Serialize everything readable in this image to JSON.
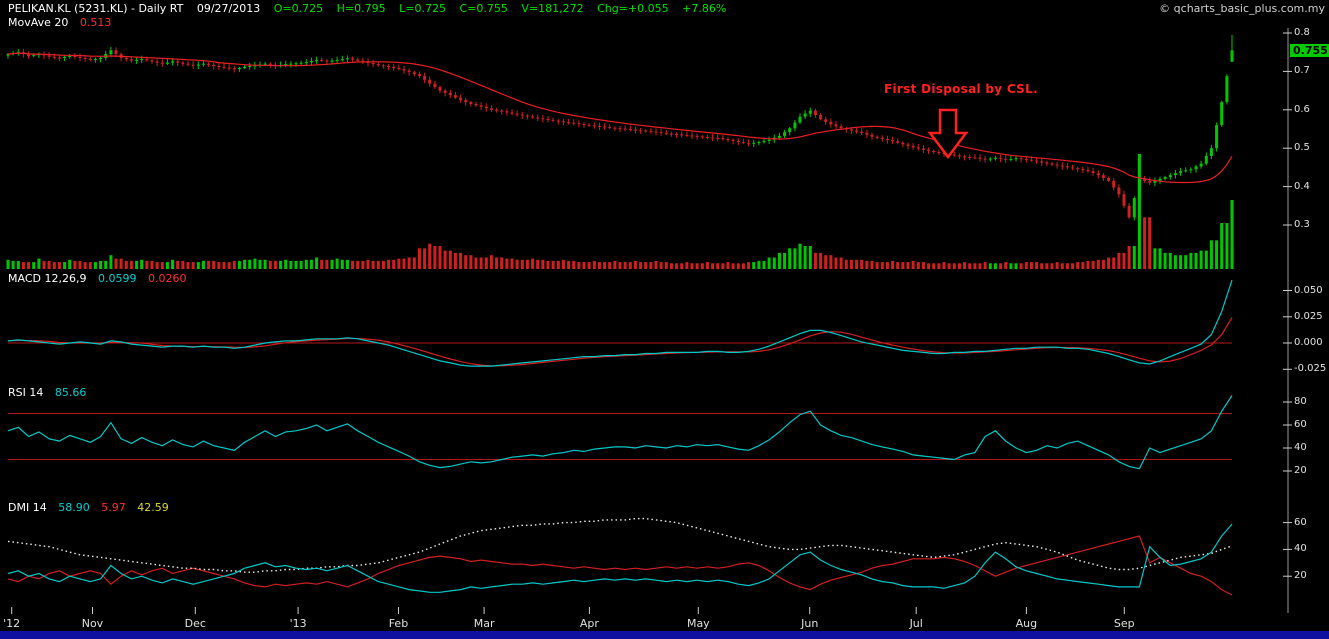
{
  "header": {
    "title": "PELIKAN.KL (5231.KL) - Daily RT",
    "date": "09/27/2013",
    "ohlcv": {
      "open": "O=0.725",
      "high": "H=0.795",
      "low": "L=0.725",
      "close": "C=0.755",
      "volume": "V=181,272"
    },
    "change": "Chg=+0.055",
    "change_pct": "+7.86%"
  },
  "copyright": "© qcharts_basic_plus.com.my",
  "price_badge": "0.755",
  "annotation": {
    "text": "First Disposal by CSL."
  },
  "panels": {
    "main": {
      "indicator_label": "MovAve 20",
      "indicator_value": "0.513"
    },
    "macd": {
      "label": "MACD 12,26,9",
      "value1": "0.0599",
      "value2": "0.0260"
    },
    "rsi": {
      "label": "RSI 14",
      "value1": "85.66"
    },
    "dmi": {
      "label": "DMI 14",
      "value1": "58.90",
      "value2": "5.97",
      "value3": "42.59"
    }
  },
  "colors": {
    "up": "#00c800",
    "down": "#d02020",
    "ma": "#e82020",
    "ref": "#b01818",
    "annotation": "#ff2020",
    "badge_bg": "#00cc00",
    "badge_text": "#000000"
  },
  "x_axis": {
    "labels": [
      {
        "text": "'12",
        "f": 0.003
      },
      {
        "text": "Nov",
        "f": 0.069
      },
      {
        "text": "Dec",
        "f": 0.153
      },
      {
        "text": "'13",
        "f": 0.237
      },
      {
        "text": "Feb",
        "f": 0.319
      },
      {
        "text": "Mar",
        "f": 0.389
      },
      {
        "text": "Apr",
        "f": 0.475
      },
      {
        "text": "May",
        "f": 0.564
      },
      {
        "text": "Jun",
        "f": 0.655
      },
      {
        "text": "Jul",
        "f": 0.742
      },
      {
        "text": "Aug",
        "f": 0.832
      },
      {
        "text": "Sep",
        "f": 0.912
      }
    ]
  },
  "chart_data": [
    {
      "type": "candlestick",
      "title": "PELIKAN.KL (5231.KL) Daily",
      "x_range": [
        "Oct 2012",
        "Sep 27 2013"
      ],
      "ylim": [
        0.27,
        0.82
      ],
      "y_ticks": [
        {
          "label": "0.8",
          "v": 0.8
        },
        {
          "label": "0.7",
          "v": 0.7
        },
        {
          "label": "0.6",
          "v": 0.6
        },
        {
          "label": "0.5",
          "v": 0.5
        },
        {
          "label": "0.4",
          "v": 0.4
        },
        {
          "label": "0.3",
          "v": 0.3
        }
      ],
      "moving_average": {
        "name": "MovAve 20",
        "last": 0.513
      },
      "last_candle": {
        "open": 0.725,
        "high": 0.795,
        "low": 0.725,
        "close": 0.755,
        "volume": 181272
      },
      "closes": [
        0.745,
        0.75,
        0.74,
        0.745,
        0.738,
        0.735,
        0.74,
        0.735,
        0.73,
        0.735,
        0.755,
        0.735,
        0.728,
        0.732,
        0.726,
        0.72,
        0.726,
        0.72,
        0.715,
        0.72,
        0.714,
        0.71,
        0.706,
        0.712,
        0.716,
        0.72,
        0.715,
        0.719,
        0.721,
        0.724,
        0.73,
        0.726,
        0.73,
        0.734,
        0.728,
        0.722,
        0.716,
        0.712,
        0.706,
        0.698,
        0.688,
        0.668,
        0.65,
        0.638,
        0.625,
        0.615,
        0.608,
        0.6,
        0.596,
        0.59,
        0.585,
        0.58,
        0.576,
        0.572,
        0.568,
        0.565,
        0.561,
        0.558,
        0.555,
        0.552,
        0.55,
        0.547,
        0.545,
        0.542,
        0.538,
        0.536,
        0.533,
        0.531,
        0.528,
        0.526,
        0.522,
        0.516,
        0.512,
        0.516,
        0.522,
        0.532,
        0.552,
        0.582,
        0.598,
        0.575,
        0.562,
        0.552,
        0.546,
        0.54,
        0.53,
        0.524,
        0.518,
        0.51,
        0.502,
        0.496,
        0.49,
        0.486,
        0.481,
        0.477,
        0.475,
        0.471,
        0.475,
        0.47,
        0.474,
        0.47,
        0.466,
        0.46,
        0.455,
        0.45,
        0.446,
        0.44,
        0.43,
        0.415,
        0.38,
        0.32,
        0.42,
        0.41,
        0.42,
        0.43,
        0.44,
        0.445,
        0.46,
        0.5,
        0.62,
        0.755
      ],
      "volumes_rel": [
        0.08,
        0.07,
        0.06,
        0.09,
        0.07,
        0.06,
        0.08,
        0.07,
        0.06,
        0.07,
        0.12,
        0.09,
        0.07,
        0.08,
        0.07,
        0.06,
        0.08,
        0.07,
        0.06,
        0.07,
        0.07,
        0.06,
        0.07,
        0.08,
        0.09,
        0.08,
        0.07,
        0.08,
        0.07,
        0.08,
        0.1,
        0.08,
        0.09,
        0.08,
        0.07,
        0.08,
        0.07,
        0.08,
        0.09,
        0.1,
        0.18,
        0.22,
        0.2,
        0.16,
        0.14,
        0.12,
        0.1,
        0.12,
        0.1,
        0.09,
        0.08,
        0.09,
        0.08,
        0.07,
        0.08,
        0.07,
        0.06,
        0.07,
        0.06,
        0.07,
        0.06,
        0.07,
        0.06,
        0.07,
        0.06,
        0.05,
        0.06,
        0.05,
        0.06,
        0.05,
        0.06,
        0.05,
        0.06,
        0.07,
        0.1,
        0.14,
        0.18,
        0.22,
        0.2,
        0.14,
        0.12,
        0.1,
        0.08,
        0.08,
        0.07,
        0.06,
        0.07,
        0.06,
        0.07,
        0.06,
        0.05,
        0.06,
        0.05,
        0.06,
        0.05,
        0.06,
        0.05,
        0.06,
        0.05,
        0.06,
        0.06,
        0.05,
        0.06,
        0.05,
        0.06,
        0.07,
        0.08,
        0.1,
        0.14,
        0.2,
        1.0,
        0.45,
        0.18,
        0.14,
        0.12,
        0.14,
        0.16,
        0.25,
        0.4,
        0.6
      ]
    },
    {
      "type": "line",
      "name": "MACD 12,26,9",
      "ylim": [
        -0.035,
        0.062
      ],
      "y_ticks": [
        {
          "label": "0.050",
          "v": 0.05
        },
        {
          "label": "0.025",
          "v": 0.025
        },
        {
          "label": "0.000",
          "v": 0.0
        },
        {
          "label": "-0.025",
          "v": -0.025
        }
      ],
      "series": [
        {
          "name": "MACD",
          "color": "#00c8c8",
          "last": 0.0599,
          "values": [
            0.002,
            0.003,
            0.002,
            0.001,
            0.0,
            -0.001,
            0.0,
            0.001,
            0.0,
            -0.001,
            0.002,
            0.001,
            -0.001,
            -0.002,
            -0.003,
            -0.004,
            -0.003,
            -0.003,
            -0.004,
            -0.003,
            -0.004,
            -0.004,
            -0.005,
            -0.004,
            -0.002,
            0.0,
            0.001,
            0.002,
            0.002,
            0.003,
            0.004,
            0.004,
            0.004,
            0.005,
            0.004,
            0.002,
            0.0,
            -0.002,
            -0.005,
            -0.008,
            -0.011,
            -0.014,
            -0.017,
            -0.019,
            -0.021,
            -0.022,
            -0.022,
            -0.022,
            -0.021,
            -0.02,
            -0.019,
            -0.018,
            -0.017,
            -0.016,
            -0.015,
            -0.014,
            -0.013,
            -0.013,
            -0.012,
            -0.012,
            -0.011,
            -0.011,
            -0.01,
            -0.01,
            -0.009,
            -0.009,
            -0.009,
            -0.009,
            -0.008,
            -0.008,
            -0.009,
            -0.009,
            -0.008,
            -0.006,
            -0.003,
            0.001,
            0.005,
            0.009,
            0.012,
            0.012,
            0.01,
            0.007,
            0.004,
            0.001,
            -0.001,
            -0.003,
            -0.005,
            -0.007,
            -0.008,
            -0.009,
            -0.01,
            -0.01,
            -0.009,
            -0.009,
            -0.008,
            -0.008,
            -0.007,
            -0.006,
            -0.005,
            -0.005,
            -0.004,
            -0.004,
            -0.004,
            -0.005,
            -0.005,
            -0.006,
            -0.008,
            -0.01,
            -0.013,
            -0.016,
            -0.019,
            -0.02,
            -0.017,
            -0.013,
            -0.009,
            -0.005,
            -0.001,
            0.008,
            0.03,
            0.0599
          ]
        },
        {
          "name": "Signal",
          "color": "#d02020",
          "last": 0.026,
          "derived": "smoothed MACD"
        }
      ]
    },
    {
      "type": "line",
      "name": "RSI 14",
      "ylim": [
        15,
        92
      ],
      "thresholds": [
        70,
        30
      ],
      "y_ticks": [
        {
          "label": "80",
          "v": 80
        },
        {
          "label": "60",
          "v": 60
        },
        {
          "label": "40",
          "v": 40
        },
        {
          "label": "20",
          "v": 20
        }
      ],
      "series": [
        {
          "name": "RSI",
          "color": "#00c8c8",
          "last": 85.66,
          "values": [
            55,
            58,
            50,
            54,
            48,
            46,
            51,
            48,
            45,
            50,
            62,
            48,
            44,
            49,
            45,
            42,
            47,
            43,
            41,
            46,
            42,
            40,
            38,
            45,
            50,
            55,
            50,
            54,
            55,
            57,
            60,
            55,
            58,
            61,
            55,
            50,
            45,
            41,
            37,
            33,
            28,
            25,
            23,
            24,
            26,
            28,
            27,
            28,
            30,
            32,
            33,
            34,
            33,
            35,
            36,
            38,
            37,
            39,
            40,
            41,
            41,
            40,
            42,
            41,
            40,
            42,
            41,
            43,
            42,
            43,
            41,
            39,
            38,
            42,
            47,
            54,
            62,
            69,
            72,
            60,
            55,
            51,
            49,
            46,
            43,
            41,
            39,
            37,
            34,
            33,
            32,
            31,
            30,
            34,
            36,
            50,
            55,
            46,
            40,
            36,
            38,
            42,
            40,
            44,
            46,
            42,
            38,
            34,
            28,
            24,
            22,
            40,
            36,
            39,
            42,
            45,
            48,
            55,
            72,
            85.66
          ]
        }
      ]
    },
    {
      "type": "line",
      "name": "DMI 14",
      "ylim": [
        0,
        72
      ],
      "y_ticks": [
        {
          "label": "60",
          "v": 60
        },
        {
          "label": "40",
          "v": 40
        },
        {
          "label": "20",
          "v": 20
        }
      ],
      "series": [
        {
          "name": "+DI",
          "color": "#00c8c8",
          "last": 58.9,
          "values": [
            22,
            24,
            20,
            22,
            18,
            16,
            20,
            18,
            16,
            18,
            28,
            22,
            18,
            20,
            17,
            15,
            18,
            16,
            14,
            16,
            18,
            20,
            22,
            26,
            28,
            30,
            27,
            28,
            26,
            25,
            26,
            24,
            26,
            28,
            24,
            20,
            16,
            14,
            12,
            10,
            9,
            8,
            8,
            9,
            10,
            12,
            11,
            12,
            13,
            14,
            14,
            15,
            14,
            15,
            16,
            17,
            16,
            17,
            18,
            17,
            18,
            17,
            18,
            17,
            16,
            17,
            16,
            17,
            16,
            17,
            16,
            14,
            13,
            15,
            18,
            24,
            30,
            36,
            38,
            32,
            28,
            25,
            23,
            21,
            18,
            16,
            15,
            13,
            12,
            12,
            12,
            11,
            13,
            15,
            20,
            30,
            38,
            33,
            27,
            24,
            22,
            20,
            18,
            17,
            16,
            15,
            14,
            13,
            12,
            12,
            12,
            42,
            34,
            28,
            29,
            31,
            33,
            38,
            50,
            58.9
          ]
        },
        {
          "name": "-DI",
          "color": "#d02020",
          "last": 5.97,
          "values": [
            18,
            16,
            20,
            18,
            22,
            24,
            20,
            22,
            24,
            22,
            14,
            20,
            24,
            21,
            24,
            26,
            22,
            24,
            26,
            24,
            22,
            20,
            18,
            15,
            13,
            12,
            14,
            13,
            14,
            15,
            14,
            16,
            14,
            12,
            15,
            18,
            22,
            25,
            28,
            30,
            32,
            34,
            35,
            34,
            33,
            31,
            32,
            31,
            30,
            29,
            29,
            28,
            29,
            28,
            27,
            26,
            27,
            26,
            25,
            26,
            25,
            26,
            25,
            26,
            27,
            26,
            27,
            26,
            27,
            26,
            27,
            29,
            30,
            28,
            24,
            19,
            15,
            12,
            10,
            14,
            17,
            19,
            21,
            23,
            26,
            28,
            29,
            31,
            33,
            33,
            33,
            34,
            33,
            31,
            28,
            24,
            20,
            23,
            26,
            28,
            30,
            32,
            34,
            36,
            38,
            40,
            42,
            44,
            46,
            48,
            50,
            30,
            34,
            30,
            26,
            22,
            20,
            16,
            10,
            5.97
          ]
        },
        {
          "name": "ADX",
          "color": "#eeeeee",
          "style": "dotted",
          "last": 42.59,
          "values": [
            46,
            45,
            44,
            43,
            42,
            40,
            38,
            36,
            35,
            34,
            33,
            32,
            31,
            30,
            29,
            28,
            27,
            26,
            26,
            25,
            25,
            24,
            24,
            23,
            23,
            24,
            24,
            25,
            25,
            26,
            26,
            27,
            27,
            28,
            28,
            29,
            30,
            32,
            34,
            36,
            38,
            41,
            44,
            47,
            50,
            52,
            54,
            55,
            56,
            57,
            58,
            58,
            59,
            59,
            60,
            60,
            61,
            61,
            62,
            62,
            62,
            63,
            63,
            62,
            61,
            60,
            58,
            56,
            54,
            52,
            50,
            48,
            46,
            44,
            42,
            41,
            40,
            40,
            41,
            42,
            43,
            43,
            42,
            41,
            40,
            39,
            38,
            37,
            36,
            35,
            34,
            35,
            36,
            38,
            40,
            42,
            44,
            45,
            44,
            43,
            42,
            40,
            38,
            35,
            32,
            30,
            28,
            26,
            25,
            25,
            26,
            28,
            30,
            32,
            34,
            35,
            36,
            37,
            40,
            42.59
          ]
        }
      ]
    }
  ]
}
